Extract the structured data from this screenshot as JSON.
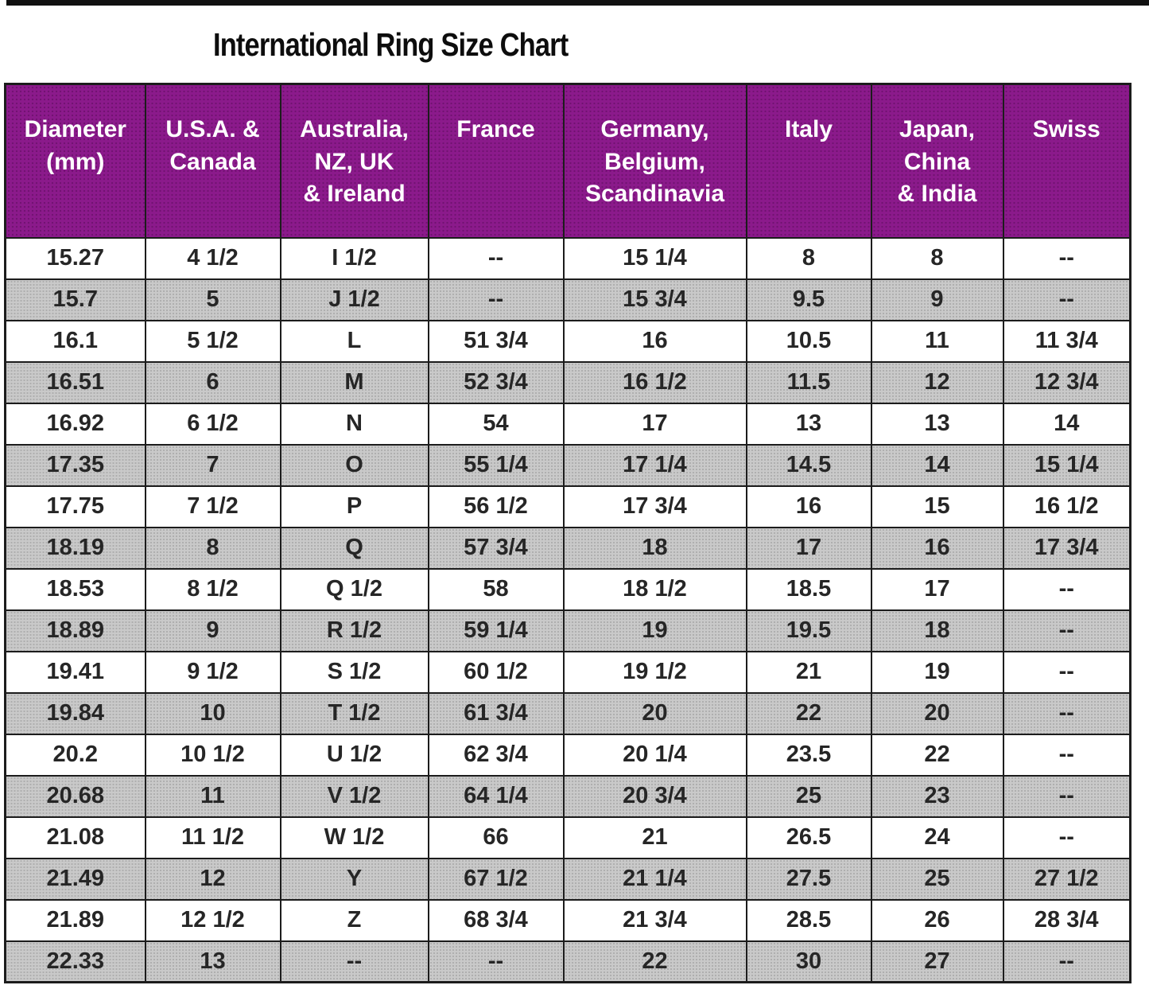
{
  "title": "International Ring Size Chart",
  "colors": {
    "header_bg": "#8b1a8b",
    "header_text": "#ffffff",
    "row_bg": "#ffffff",
    "row_alt_bg": "#c9c9c9",
    "border": "#1c1c1c",
    "text": "#262626"
  },
  "chart_data": {
    "type": "table",
    "title": "International Ring Size Chart",
    "columns": [
      "Diameter\n(mm)",
      "U.S.A. &\nCanada",
      "Australia,\nNZ, UK\n& Ireland",
      "France",
      "Germany,\nBelgium,\nScandinavia",
      "Italy",
      "Japan,\nChina\n& India",
      "Swiss"
    ],
    "rows": [
      [
        "15.27",
        "4 1/2",
        "I 1/2",
        "--",
        "15 1/4",
        "8",
        "8",
        "--"
      ],
      [
        "15.7",
        "5",
        "J 1/2",
        "--",
        "15 3/4",
        "9.5",
        "9",
        "--"
      ],
      [
        "16.1",
        "5 1/2",
        "L",
        "51 3/4",
        "16",
        "10.5",
        "11",
        "11 3/4"
      ],
      [
        "16.51",
        "6",
        "M",
        "52 3/4",
        "16 1/2",
        "11.5",
        "12",
        "12 3/4"
      ],
      [
        "16.92",
        "6 1/2",
        "N",
        "54",
        "17",
        "13",
        "13",
        "14"
      ],
      [
        "17.35",
        "7",
        "O",
        "55 1/4",
        "17 1/4",
        "14.5",
        "14",
        "15 1/4"
      ],
      [
        "17.75",
        "7 1/2",
        "P",
        "56 1/2",
        "17 3/4",
        "16",
        "15",
        "16 1/2"
      ],
      [
        "18.19",
        "8",
        "Q",
        "57 3/4",
        "18",
        "17",
        "16",
        "17 3/4"
      ],
      [
        "18.53",
        "8 1/2",
        "Q 1/2",
        "58",
        "18 1/2",
        "18.5",
        "17",
        "--"
      ],
      [
        "18.89",
        "9",
        "R 1/2",
        "59 1/4",
        "19",
        "19.5",
        "18",
        "--"
      ],
      [
        "19.41",
        "9 1/2",
        "S 1/2",
        "60 1/2",
        "19 1/2",
        "21",
        "19",
        "--"
      ],
      [
        "19.84",
        "10",
        "T 1/2",
        "61 3/4",
        "20",
        "22",
        "20",
        "--"
      ],
      [
        "20.2",
        "10 1/2",
        "U 1/2",
        "62 3/4",
        "20 1/4",
        "23.5",
        "22",
        "--"
      ],
      [
        "20.68",
        "11",
        "V 1/2",
        "64 1/4",
        "20 3/4",
        "25",
        "23",
        "--"
      ],
      [
        "21.08",
        "11 1/2",
        "W 1/2",
        "66",
        "21",
        "26.5",
        "24",
        "--"
      ],
      [
        "21.49",
        "12",
        "Y",
        "67 1/2",
        "21 1/4",
        "27.5",
        "25",
        "27 1/2"
      ],
      [
        "21.89",
        "12 1/2",
        "Z",
        "68 3/4",
        "21 3/4",
        "28.5",
        "26",
        "28 3/4"
      ],
      [
        "22.33",
        "13",
        "--",
        "--",
        "22",
        "30",
        "27",
        "--"
      ]
    ]
  }
}
